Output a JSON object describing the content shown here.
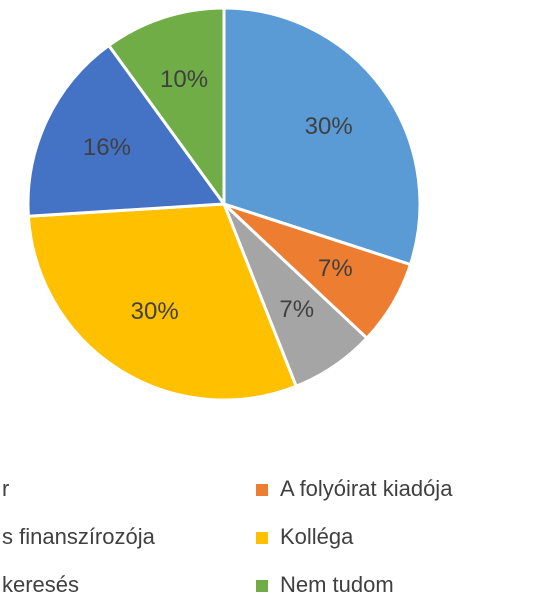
{
  "chart_data": {
    "type": "pie",
    "categories": [
      "r",
      "A folyóirat kiadója",
      "s finanszírozója",
      "Kolléga",
      "keresés",
      "Nem tudom"
    ],
    "values": [
      30,
      7,
      7,
      30,
      16,
      10
    ],
    "colors": [
      "#5b9bd5",
      "#ed7d31",
      "#a5a5a5",
      "#ffc000",
      "#4472c4",
      "#70ad47"
    ],
    "legend": "bottom"
  }
}
